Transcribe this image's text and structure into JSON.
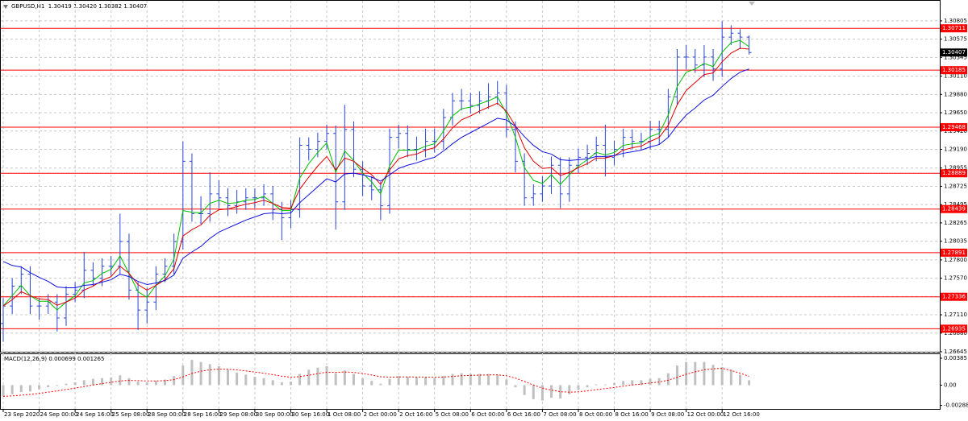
{
  "chart_data": {
    "type": "ohlc",
    "header": "GBPUSD,H1  1.30419 1.30420 1.30382 1.30407",
    "categories": [
      "23 Sep 2020",
      null,
      null,
      null,
      "24 Sep 00:00",
      null,
      null,
      null,
      "24 Sep 16:00",
      null,
      null,
      null,
      "25 Sep 08:00",
      null,
      null,
      null,
      "28 Sep 00:00",
      null,
      null,
      null,
      "28 Sep 16:00",
      null,
      null,
      null,
      "29 Sep 08:00",
      null,
      null,
      null,
      "30 Sep 00:00",
      null,
      null,
      null,
      "30 Sep 16:00",
      null,
      null,
      null,
      "1 Oct 08:00",
      null,
      null,
      null,
      "2 Oct 00:00",
      null,
      null,
      null,
      "2 Oct 16:00",
      null,
      null,
      null,
      "5 Oct 08:00",
      null,
      null,
      null,
      "6 Oct 00:00",
      null,
      null,
      null,
      "6 Oct 16:00",
      null,
      null,
      null,
      "7 Oct 08:00",
      null,
      null,
      null,
      "8 Oct 00:00",
      null,
      null,
      null,
      "8 Oct 16:00",
      null,
      null,
      null,
      "9 Oct 08:00",
      null,
      null,
      null,
      "12 Oct 00:00",
      null,
      null,
      null,
      "12 Oct 16:00",
      null,
      null,
      null
    ],
    "open": [
      1.27,
      1.2722,
      1.2747,
      1.2762,
      1.2722,
      1.2722,
      1.2727,
      1.2707,
      1.2737,
      1.2742,
      1.2767,
      1.2757,
      1.2772,
      1.2772,
      1.2803,
      1.2742,
      1.2717,
      1.2727,
      1.2762,
      1.2772,
      1.2803,
      1.2904,
      1.2838,
      1.2838,
      1.2863,
      1.2858,
      1.2848,
      1.2853,
      1.2858,
      1.2858,
      1.2863,
      1.2843,
      1.2833,
      1.2843,
      1.2924,
      1.2919,
      1.2929,
      1.2939,
      1.2853,
      1.2944,
      1.2894,
      1.2873,
      1.2868,
      1.2848,
      1.2934,
      1.2939,
      1.2919,
      1.2919,
      1.2929,
      1.2929,
      1.2959,
      1.298,
      1.298,
      1.2974,
      1.298,
      1.2985,
      1.299,
      1.2944,
      1.2904,
      1.2858,
      1.2863,
      1.2873,
      1.2899,
      1.2863,
      1.2899,
      1.2909,
      1.2914,
      1.2924,
      1.2909,
      1.2919,
      1.2934,
      1.2929,
      1.2929,
      1.2944,
      1.2944,
      1.2985,
      1.3035,
      1.3035,
      1.3025,
      1.3035,
      1.302,
      1.306,
      1.3065,
      1.306
    ],
    "high": [
      1.2732,
      1.2757,
      1.2772,
      1.2772,
      1.2732,
      1.2737,
      1.2737,
      1.2747,
      1.2752,
      1.279,
      1.2777,
      1.2782,
      1.2785,
      1.2838,
      1.2813,
      1.2752,
      1.2745,
      1.2772,
      1.2782,
      1.2813,
      1.2929,
      1.2914,
      1.286,
      1.289,
      1.288,
      1.287,
      1.2868,
      1.287,
      1.287,
      1.2875,
      1.2873,
      1.2853,
      1.2855,
      1.2934,
      1.2934,
      1.294,
      1.295,
      1.2949,
      1.2975,
      1.2954,
      1.2904,
      1.2885,
      1.2878,
      1.2945,
      1.295,
      1.2949,
      1.2935,
      1.2945,
      1.2945,
      1.297,
      1.299,
      1.2995,
      1.299,
      1.2992,
      1.3002,
      1.3005,
      1.3,
      1.2954,
      1.2914,
      1.2875,
      1.2885,
      1.291,
      1.2909,
      1.2909,
      1.292,
      1.2925,
      1.2935,
      1.295,
      1.293,
      1.2945,
      1.2944,
      1.294,
      1.2955,
      1.2955,
      1.2995,
      1.3045,
      1.305,
      1.3045,
      1.305,
      1.3045,
      1.308,
      1.3075,
      1.307,
      1.3062
    ],
    "low": [
      1.2677,
      1.2712,
      1.2737,
      1.2712,
      1.2705,
      1.2712,
      1.269,
      1.2697,
      1.2727,
      1.2732,
      1.2747,
      1.2747,
      1.276,
      1.2762,
      1.273,
      1.2692,
      1.27,
      1.2717,
      1.2752,
      1.2762,
      1.2793,
      1.2828,
      1.2825,
      1.2828,
      1.2845,
      1.2835,
      1.2838,
      1.2843,
      1.2845,
      1.2848,
      1.283,
      1.2805,
      1.282,
      1.2833,
      1.2905,
      1.2909,
      1.2919,
      1.2818,
      1.2843,
      1.2884,
      1.286,
      1.2855,
      1.283,
      1.2838,
      1.292,
      1.2909,
      1.2905,
      1.2909,
      1.2915,
      1.2919,
      1.2949,
      1.2968,
      1.2964,
      1.2964,
      1.297,
      1.2975,
      1.2934,
      1.289,
      1.2848,
      1.2848,
      1.2853,
      1.2863,
      1.2845,
      1.2853,
      1.2889,
      1.2899,
      1.2904,
      1.2885,
      1.2899,
      1.2909,
      1.2919,
      1.2919,
      1.2919,
      1.2925,
      1.2934,
      1.2975,
      1.302,
      1.3015,
      1.301,
      1.3005,
      1.301,
      1.305,
      1.3045,
      1.30382
    ],
    "close": [
      1.2722,
      1.2747,
      1.2762,
      1.2722,
      1.2722,
      1.2727,
      1.2707,
      1.2737,
      1.2742,
      1.2767,
      1.2757,
      1.2772,
      1.2772,
      1.2803,
      1.2742,
      1.2717,
      1.2727,
      1.2762,
      1.2772,
      1.2803,
      1.2904,
      1.2838,
      1.2838,
      1.2863,
      1.2858,
      1.2848,
      1.2853,
      1.2858,
      1.2858,
      1.2863,
      1.2843,
      1.2833,
      1.2843,
      1.2924,
      1.2919,
      1.2929,
      1.2939,
      1.2853,
      1.2944,
      1.2894,
      1.2873,
      1.2868,
      1.2848,
      1.2934,
      1.2939,
      1.2919,
      1.2919,
      1.2929,
      1.2929,
      1.2959,
      1.298,
      1.298,
      1.2974,
      1.298,
      1.2985,
      1.299,
      1.2944,
      1.2904,
      1.2858,
      1.2863,
      1.2873,
      1.2899,
      1.2863,
      1.2899,
      1.2909,
      1.2914,
      1.2924,
      1.2909,
      1.2919,
      1.2934,
      1.2929,
      1.2929,
      1.2944,
      1.2944,
      1.2985,
      1.3035,
      1.3035,
      1.3025,
      1.3035,
      1.302,
      1.306,
      1.3065,
      1.306,
      1.30407
    ],
    "color": "#2a45d6",
    "ylim": [
      1.26645,
      1.31057
    ],
    "yticks": [
      1.30805,
      1.30575,
      1.30345,
      {
        "value": 1.3011,
        "label": "1.30110"
      },
      {
        "value": 1.2988,
        "label": "1.29880"
      },
      {
        "value": 1.2965,
        "label": "1.29650"
      },
      {
        "value": 1.2942,
        "label": "1.29420"
      },
      {
        "value": 1.2919,
        "label": "1.29190"
      },
      1.28955,
      1.28725,
      1.28495,
      1.28265,
      1.28035,
      {
        "value": 1.278,
        "label": "1.27800"
      },
      {
        "value": 1.2757,
        "label": "1.27570"
      },
      {
        "value": 1.2734,
        "label": "1.27340"
      },
      {
        "value": 1.2711,
        "label": "1.27110"
      },
      {
        "value": 1.2688,
        "label": "1.26880"
      },
      1.26645
    ],
    "grid": true,
    "levels": {
      "color": "#ff0000",
      "values": [
        1.30711,
        1.30185,
        1.29468,
        1.28889,
        1.28439,
        1.27891,
        1.27336,
        1.26935
      ]
    },
    "last_price": 1.30407,
    "moving_averages": [
      {
        "color": "#00c000",
        "values": [
          1.2722,
          1.2735,
          1.2748,
          1.2735,
          1.2728,
          1.2728,
          1.2717,
          1.2727,
          1.2735,
          1.2751,
          1.2754,
          1.2763,
          1.2768,
          1.2785,
          1.2763,
          1.274,
          1.2733,
          1.2748,
          1.276,
          1.2781,
          1.2842,
          1.284,
          1.2839,
          1.2851,
          1.2855,
          1.2851,
          1.2852,
          1.2855,
          1.2856,
          1.286,
          1.2851,
          1.2842,
          1.2842,
          1.2883,
          1.2901,
          1.2915,
          1.2927,
          1.289,
          1.2917,
          1.2905,
          1.2889,
          1.2878,
          1.2863,
          1.2898,
          1.2918,
          1.2918,
          1.2918,
          1.2923,
          1.2926,
          1.2942,
          1.2961,
          1.297,
          1.2972,
          1.2976,
          1.298,
          1.2985,
          1.2964,
          1.2934,
          1.2896,
          1.288,
          1.2876,
          1.2887,
          1.2875,
          1.2887,
          1.2898,
          1.2906,
          1.2915,
          1.2912,
          1.2915,
          1.2924,
          1.2926,
          1.2927,
          1.2935,
          1.2939,
          1.2962,
          1.2998,
          1.3016,
          1.302,
          1.3027,
          1.3023,
          1.3041,
          1.3053,
          1.3056,
          1.3048
        ]
      },
      {
        "color": "#e00000",
        "values": [
          1.2722,
          1.273,
          1.274,
          1.2735,
          1.2731,
          1.273,
          1.2723,
          1.2727,
          1.2732,
          1.2742,
          1.2747,
          1.2754,
          1.2759,
          1.2772,
          1.2763,
          1.2749,
          1.2742,
          1.2748,
          1.2755,
          1.2769,
          1.281,
          1.2818,
          1.2824,
          1.2836,
          1.2843,
          1.2844,
          1.2847,
          1.285,
          1.2852,
          1.2855,
          1.2851,
          1.2846,
          1.2845,
          1.2869,
          1.2884,
          1.2898,
          1.291,
          1.2893,
          1.2908,
          1.2904,
          1.2895,
          1.2887,
          1.2875,
          1.2893,
          1.2907,
          1.2911,
          1.2913,
          1.2918,
          1.2921,
          1.2932,
          1.2946,
          1.2956,
          1.2961,
          1.2967,
          1.2972,
          1.2977,
          1.2967,
          1.2948,
          1.2921,
          1.2904,
          1.2895,
          1.2896,
          1.2886,
          1.289,
          1.2896,
          1.2901,
          1.2908,
          1.2908,
          1.2911,
          1.2918,
          1.2921,
          1.2923,
          1.2929,
          1.2934,
          1.2949,
          1.2975,
          1.2993,
          1.3003,
          1.3013,
          1.3015,
          1.3029,
          1.304,
          1.3046,
          1.3045
        ]
      },
      {
        "color": "#1010e0",
        "values": [
          1.2778,
          1.2773,
          1.2771,
          1.2764,
          1.2758,
          1.2753,
          1.2746,
          1.2745,
          1.2745,
          1.2748,
          1.2749,
          1.2752,
          1.2755,
          1.2762,
          1.2759,
          1.2753,
          1.2749,
          1.2751,
          1.2754,
          1.2761,
          1.2782,
          1.279,
          1.2797,
          1.2807,
          1.2815,
          1.282,
          1.2825,
          1.283,
          1.2834,
          1.2838,
          1.2839,
          1.2838,
          1.2839,
          1.2852,
          1.2862,
          1.2872,
          1.2882,
          1.2878,
          1.2888,
          1.2889,
          1.2887,
          1.2884,
          1.2879,
          1.2887,
          1.2895,
          1.2899,
          1.2902,
          1.2906,
          1.2909,
          1.2917,
          1.2926,
          1.2934,
          1.294,
          1.2946,
          1.2952,
          1.2958,
          1.2956,
          1.2948,
          1.2935,
          1.2924,
          1.2916,
          1.2913,
          1.2906,
          1.2905,
          1.2906,
          1.2907,
          1.291,
          1.291,
          1.2911,
          1.2914,
          1.2916,
          1.2918,
          1.2922,
          1.2925,
          1.2934,
          1.2949,
          1.2962,
          1.2971,
          1.2981,
          1.2987,
          1.2998,
          1.3008,
          1.3016,
          1.302
        ]
      }
    ],
    "macd": {
      "title": "MACD(12,26,9) 0.000699 0.001265",
      "histogram_color": "#c0c0c0",
      "signal_color": "#ff0000",
      "ylim": [
        -0.00351,
        0.00442
      ],
      "yticks": [
        0.00385,
        {
          "value": 0,
          "label": "0.00"
        },
        -0.002888
      ],
      "histogram": [
        -0.0016,
        -0.0013,
        -0.001,
        -0.0009,
        -0.0006,
        -0.0003,
        -0.0001,
        0.0002,
        0.0004,
        0.0007,
        0.0009,
        0.001,
        0.0011,
        0.0014,
        0.001,
        0.0005,
        0.0004,
        0.0006,
        0.0008,
        0.0013,
        0.0028,
        0.0036,
        0.0033,
        0.003,
        0.0027,
        0.0022,
        0.0018,
        0.0015,
        0.0012,
        0.001,
        0.0007,
        0.0004,
        0.0005,
        0.0016,
        0.0022,
        0.0025,
        0.0027,
        0.0017,
        0.0021,
        0.0016,
        0.001,
        0.0006,
        0.0002,
        0.0009,
        0.0013,
        0.0012,
        0.0011,
        0.0011,
        0.001,
        0.0013,
        0.0016,
        0.0017,
        0.0016,
        0.0016,
        0.0016,
        0.0015,
        0.0008,
        -0.0003,
        -0.0014,
        -0.002,
        -0.0022,
        -0.0018,
        -0.0019,
        -0.0013,
        -0.0007,
        -0.0003,
        0.0001,
        0.0001,
        0.0003,
        0.0006,
        0.0007,
        0.0007,
        0.0009,
        0.001,
        0.0017,
        0.0028,
        0.0033,
        0.0033,
        0.0033,
        0.0029,
        0.0026,
        0.0022,
        0.0015,
        0.000699
      ],
      "signal": [
        -0.0016,
        -0.00154,
        -0.00143,
        -0.00132,
        -0.00118,
        -0.001,
        -0.00082,
        -0.00062,
        -0.00042,
        -0.0002,
        2e-05,
        0.00022,
        0.0004,
        0.0006,
        0.00068,
        0.00064,
        0.0006,
        0.0006,
        0.00064,
        0.00078,
        0.00118,
        0.00166,
        0.00199,
        0.00219,
        0.00229,
        0.00227,
        0.00218,
        0.00204,
        0.00187,
        0.0017,
        0.0015,
        0.00128,
        0.00112,
        0.00122,
        0.00142,
        0.00164,
        0.00185,
        0.00182,
        0.00188,
        0.00182,
        0.00166,
        0.00145,
        0.0012,
        0.00114,
        0.00117,
        0.00118,
        0.00116,
        0.00115,
        0.00112,
        0.00116,
        0.00125,
        0.00134,
        0.00139,
        0.00143,
        0.00146,
        0.00147,
        0.00134,
        0.00101,
        0.00053,
        2e-05,
        -0.00042,
        -0.0007,
        -0.00094,
        -0.00101,
        -0.00095,
        -0.00082,
        -0.00064,
        -0.00049,
        -0.00033,
        -0.00014,
        3e-05,
        0.00016,
        0.00031,
        0.00045,
        0.0007,
        0.00112,
        0.00156,
        0.00191,
        0.00219,
        0.00233,
        0.0024,
        0.0021,
        0.0017,
        0.001265
      ]
    }
  }
}
